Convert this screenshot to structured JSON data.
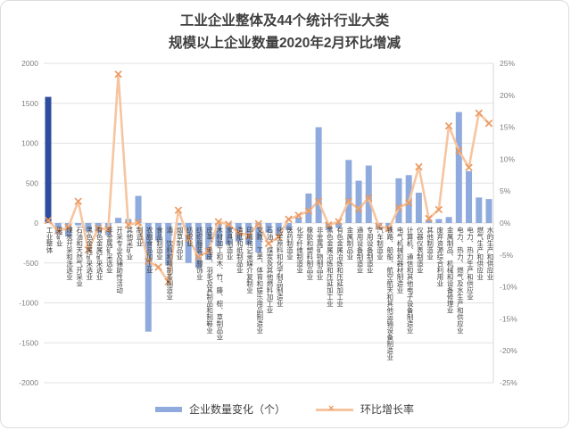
{
  "title": {
    "line1": "工业企业整体及44个统计行业大类",
    "line2": "规模以上企业数量2020年2月环比增减"
  },
  "legend": {
    "bar_label": "企业数量变化（个）",
    "line_label": "环比增长率"
  },
  "colors": {
    "bar_light": "#8faadc",
    "bar_dark": "#2e4d9e",
    "line": "#f6c5a0",
    "marker": "#ea9a62",
    "grid": "#e2e2e2",
    "axis_text": "#7f7f7f",
    "right_axis_line": "#d9d9d9"
  },
  "chart_data": {
    "type": "bar",
    "subtype": "combo-bar-line",
    "title": "工业企业整体及44个统计行业大类 规模以上企业数量2020年2月环比增减",
    "categories": [
      "工业整体",
      "采矿业",
      "煤炭开采和洗选业",
      "石油和天然气开采业",
      "黑色金属矿采选业",
      "有色金属矿采选业",
      "非金属矿采选业",
      "开采专业及辅助性活动",
      "其他采矿业",
      "制造业",
      "农副食品加工业",
      "食品制造业",
      "酒、饮料和精制茶制造业",
      "烟草制品业",
      "纺织业",
      "纺织服装、服饰业",
      "皮革、毛皮、羽毛及其制品和制鞋业",
      "木材加工和木、竹、藤、棕、草制品业",
      "家具制造业",
      "造纸和纸制品业",
      "印刷和记录媒介复制业",
      "文教、工美、体育和娱乐用品制造业",
      "石油、煤炭及其他燃料加工业",
      "化学原料和化学制品制造业",
      "医药制造业",
      "化学纤维制造业",
      "橡胶和塑料制品业",
      "非金属矿物制品业",
      "黑色金属冶炼和压延加工业",
      "有色金属冶炼和压延加工业",
      "金属制品业",
      "通用设备制造业",
      "专用设备制造业",
      "汽车制造业",
      "铁路、船舶、航空航天和其他运输设备制造业",
      "电气机械和器材制造业",
      "计算机、通信和其他电子设备制造业",
      "仪器仪表制造业",
      "其他制造业",
      "废弃资源综合利用业",
      "金属制品、机械和设备修理业",
      "电力、热力、燃气及水生产和供应业",
      "电力、热力生产和供应业",
      "燃气生产和供应业",
      "水的生产和供应业"
    ],
    "series": [
      {
        "name": "企业数量变化（个）",
        "type": "bar",
        "axis": "left",
        "values": [
          1580,
          -140,
          -170,
          -30,
          -105,
          -125,
          -150,
          65,
          50,
          340,
          -1360,
          -220,
          -530,
          -30,
          -500,
          -560,
          -460,
          -290,
          -270,
          -230,
          -270,
          -370,
          -120,
          -160,
          -90,
          70,
          370,
          1200,
          -90,
          -60,
          790,
          530,
          720,
          -75,
          -105,
          560,
          600,
          380,
          45,
          50,
          75,
          1390,
          650,
          320,
          300
        ]
      },
      {
        "name": "环比增长率",
        "type": "line",
        "axis": "right",
        "values": [
          0.4,
          -1.2,
          -0.7,
          3.4,
          -4.2,
          -0.8,
          -1.0,
          23.3,
          -0.3,
          0.1,
          -6.0,
          -6.9,
          -9.2,
          2.0,
          -2.4,
          -5.3,
          -4.4,
          0.2,
          -0.2,
          -1.5,
          -2.0,
          -0.1,
          -3.2,
          -2.2,
          0.6,
          1.2,
          1.9,
          3.4,
          -0.3,
          0.2,
          3.4,
          2.2,
          3.9,
          -0.5,
          -0.9,
          2.4,
          3.2,
          8.8,
          0.7,
          2.1,
          15.2,
          11.3,
          8.7,
          17.2,
          15.6
        ]
      }
    ],
    "left_axis": {
      "min": -2000,
      "max": 2000,
      "step": 500,
      "tick_labels": [
        "2000",
        "1500",
        "1000",
        "500",
        "0",
        "-500",
        "-1000",
        "-1500",
        "-2000"
      ]
    },
    "right_axis": {
      "min": -25,
      "max": 25,
      "step": 5,
      "format": "percent",
      "tick_labels": [
        "25%",
        "20%",
        "15%",
        "10%",
        "5%",
        "0%",
        "-5%",
        "-10%",
        "-15%",
        "-20%",
        "-25%"
      ]
    },
    "grid": true,
    "legend_position": "bottom",
    "highlight_first_bar": true
  }
}
